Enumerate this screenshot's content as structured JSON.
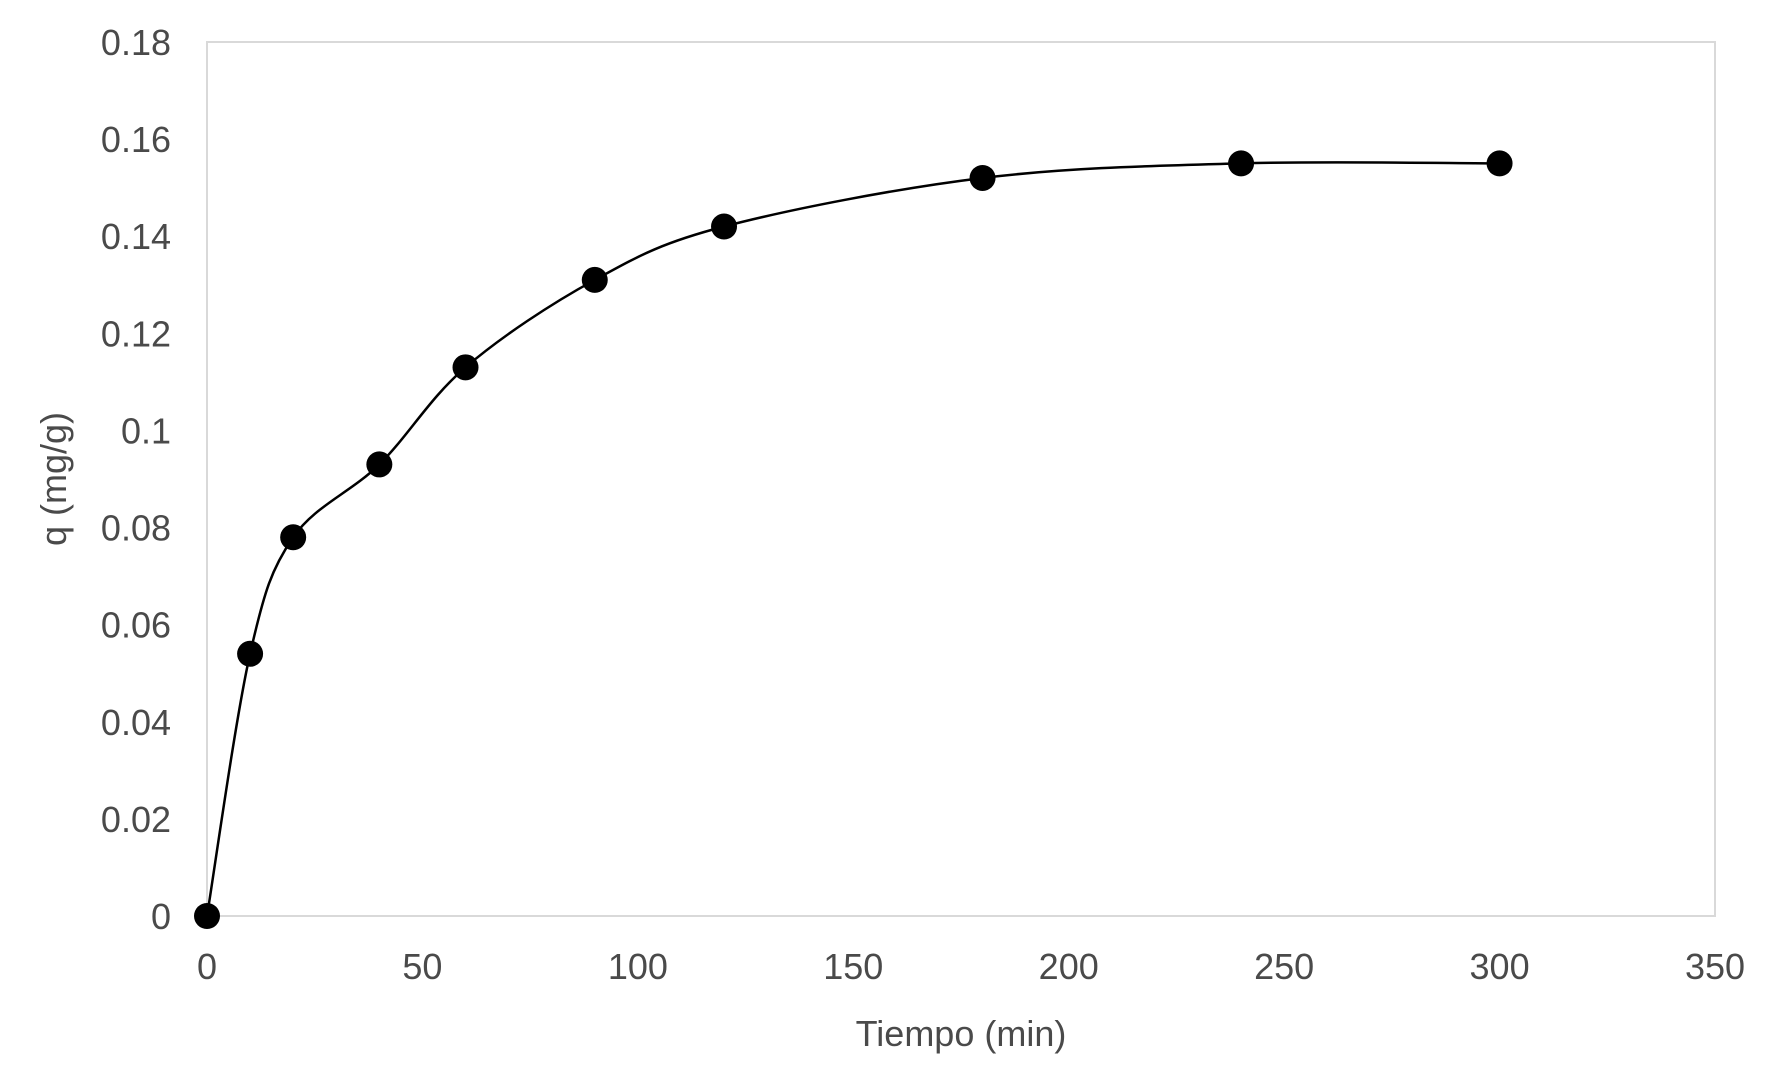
{
  "chart_data": {
    "type": "scatter",
    "title": "",
    "xlabel": "Tiempo (min)",
    "ylabel": "q (mg/g)",
    "xlim": [
      0,
      350
    ],
    "ylim": [
      0,
      0.18
    ],
    "x_ticks": [
      "0",
      "50",
      "100",
      "150",
      "200",
      "250",
      "300",
      "350"
    ],
    "y_ticks": [
      "0",
      "0.02",
      "0.04",
      "0.06",
      "0.08",
      "0.1",
      "0.12",
      "0.14",
      "0.16",
      "0.18"
    ],
    "grid": false,
    "legend": "none",
    "smoothed_line": true,
    "colors": {
      "marker": "#000000",
      "line": "#000000",
      "plot_border": "#d9d9d9",
      "text": "#4a4a4a"
    },
    "series": [
      {
        "x": [
          0,
          10,
          20,
          40,
          60,
          90,
          120,
          180,
          240,
          300
        ],
        "y": [
          0,
          0.054,
          0.078,
          0.093,
          0.113,
          0.131,
          0.142,
          0.152,
          0.155,
          0.155
        ]
      }
    ]
  }
}
